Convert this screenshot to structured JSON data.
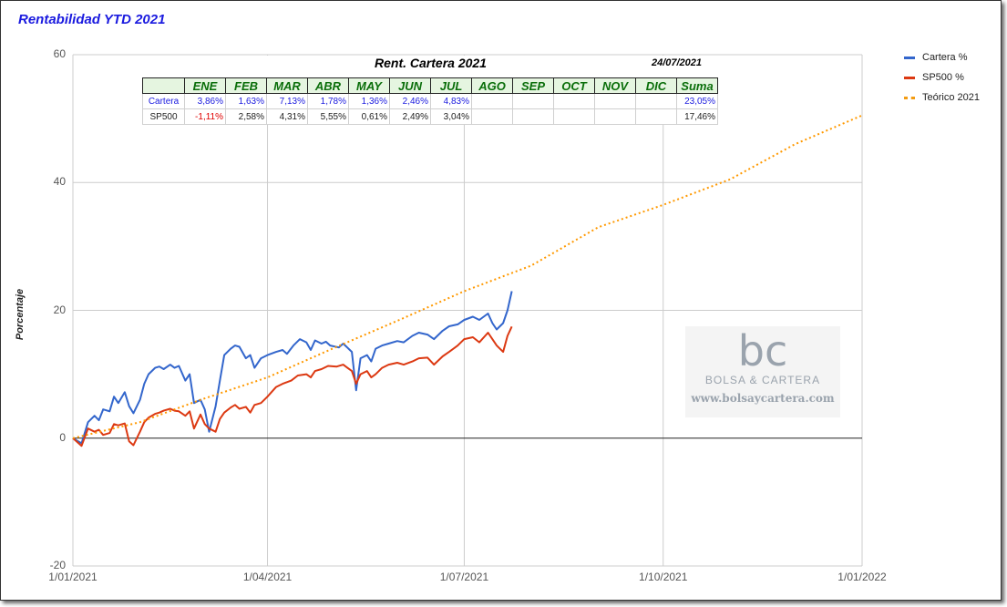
{
  "chart_data": {
    "type": "line",
    "title": "Rentabilidad YTD 2021",
    "ylabel": "Porcentaje",
    "xlabel": "",
    "ylim": [
      -20,
      60
    ],
    "xlim": [
      "2021-01-01",
      "2022-01-01"
    ],
    "yticks": [
      "-20",
      "0",
      "20",
      "40",
      "60"
    ],
    "xticks": [
      "1/01/2021",
      "1/04/2021",
      "1/07/2021",
      "1/10/2021",
      "1/01/2022"
    ],
    "legend_position": "right",
    "grid": true,
    "series": [
      {
        "name": "Cartera %",
        "color": "#3366cc",
        "points": [
          [
            "2021-01-01",
            0
          ],
          [
            "2021-01-05",
            -0.8
          ],
          [
            "2021-01-08",
            2.5
          ],
          [
            "2021-01-11",
            3.5
          ],
          [
            "2021-01-13",
            2.8
          ],
          [
            "2021-01-15",
            4.5
          ],
          [
            "2021-01-18",
            4.2
          ],
          [
            "2021-01-20",
            6.5
          ],
          [
            "2021-01-22",
            5.5
          ],
          [
            "2021-01-25",
            7.2
          ],
          [
            "2021-01-27",
            5
          ],
          [
            "2021-01-29",
            3.9
          ],
          [
            "2021-02-01",
            6
          ],
          [
            "2021-02-03",
            8.5
          ],
          [
            "2021-02-05",
            10
          ],
          [
            "2021-02-08",
            11
          ],
          [
            "2021-02-10",
            11.2
          ],
          [
            "2021-02-12",
            10.8
          ],
          [
            "2021-02-15",
            11.5
          ],
          [
            "2021-02-17",
            11
          ],
          [
            "2021-02-19",
            11.3
          ],
          [
            "2021-02-22",
            9
          ],
          [
            "2021-02-24",
            10
          ],
          [
            "2021-02-26",
            5.5
          ],
          [
            "2021-03-01",
            6
          ],
          [
            "2021-03-03",
            4.5
          ],
          [
            "2021-03-05",
            1
          ],
          [
            "2021-03-08",
            5
          ],
          [
            "2021-03-10",
            9
          ],
          [
            "2021-03-12",
            13
          ],
          [
            "2021-03-15",
            14
          ],
          [
            "2021-03-17",
            14.5
          ],
          [
            "2021-03-19",
            14.3
          ],
          [
            "2021-03-22",
            12.5
          ],
          [
            "2021-03-24",
            13
          ],
          [
            "2021-03-26",
            11
          ],
          [
            "2021-03-29",
            12.5
          ],
          [
            "2021-04-01",
            13
          ],
          [
            "2021-04-05",
            13.5
          ],
          [
            "2021-04-08",
            13.8
          ],
          [
            "2021-04-10",
            13.2
          ],
          [
            "2021-04-13",
            14.5
          ],
          [
            "2021-04-16",
            15.5
          ],
          [
            "2021-04-19",
            15
          ],
          [
            "2021-04-21",
            13.8
          ],
          [
            "2021-04-23",
            15.3
          ],
          [
            "2021-04-26",
            14.8
          ],
          [
            "2021-04-28",
            15.1
          ],
          [
            "2021-04-30",
            14.5
          ],
          [
            "2021-05-04",
            14.2
          ],
          [
            "2021-05-06",
            14.8
          ],
          [
            "2021-05-10",
            13.5
          ],
          [
            "2021-05-12",
            7.5
          ],
          [
            "2021-05-14",
            12.5
          ],
          [
            "2021-05-17",
            13
          ],
          [
            "2021-05-19",
            12
          ],
          [
            "2021-05-21",
            14
          ],
          [
            "2021-05-24",
            14.5
          ],
          [
            "2021-05-27",
            14.8
          ],
          [
            "2021-05-31",
            15.2
          ],
          [
            "2021-06-03",
            15
          ],
          [
            "2021-06-07",
            16
          ],
          [
            "2021-06-10",
            16.5
          ],
          [
            "2021-06-14",
            16.2
          ],
          [
            "2021-06-17",
            15.5
          ],
          [
            "2021-06-21",
            16.8
          ],
          [
            "2021-06-24",
            17.5
          ],
          [
            "2021-06-28",
            17.8
          ],
          [
            "2021-07-01",
            18.5
          ],
          [
            "2021-07-05",
            19
          ],
          [
            "2021-07-08",
            18.5
          ],
          [
            "2021-07-12",
            19.5
          ],
          [
            "2021-07-14",
            18
          ],
          [
            "2021-07-16",
            17
          ],
          [
            "2021-07-19",
            18
          ],
          [
            "2021-07-21",
            20
          ],
          [
            "2021-07-23",
            23
          ]
        ]
      },
      {
        "name": "SP500 %",
        "color": "#dc3912",
        "points": [
          [
            "2021-01-01",
            0
          ],
          [
            "2021-01-05",
            -1.2
          ],
          [
            "2021-01-08",
            1.5
          ],
          [
            "2021-01-11",
            1
          ],
          [
            "2021-01-13",
            1.3
          ],
          [
            "2021-01-15",
            0.5
          ],
          [
            "2021-01-18",
            0.8
          ],
          [
            "2021-01-20",
            2.2
          ],
          [
            "2021-01-22",
            2
          ],
          [
            "2021-01-25",
            2.3
          ],
          [
            "2021-01-27",
            -0.5
          ],
          [
            "2021-01-29",
            -1.1
          ],
          [
            "2021-02-01",
            1
          ],
          [
            "2021-02-03",
            2.5
          ],
          [
            "2021-02-05",
            3.2
          ],
          [
            "2021-02-08",
            3.8
          ],
          [
            "2021-02-10",
            4
          ],
          [
            "2021-02-12",
            4.3
          ],
          [
            "2021-02-15",
            4.6
          ],
          [
            "2021-02-17",
            4.3
          ],
          [
            "2021-02-19",
            4.2
          ],
          [
            "2021-02-22",
            3.5
          ],
          [
            "2021-02-24",
            4.2
          ],
          [
            "2021-02-26",
            1.5
          ],
          [
            "2021-03-01",
            3.7
          ],
          [
            "2021-03-03",
            2.2
          ],
          [
            "2021-03-05",
            1.5
          ],
          [
            "2021-03-08",
            1
          ],
          [
            "2021-03-10",
            3
          ],
          [
            "2021-03-12",
            4
          ],
          [
            "2021-03-15",
            4.8
          ],
          [
            "2021-03-17",
            5.2
          ],
          [
            "2021-03-19",
            4.6
          ],
          [
            "2021-03-22",
            4.9
          ],
          [
            "2021-03-24",
            4
          ],
          [
            "2021-03-26",
            5.2
          ],
          [
            "2021-03-29",
            5.5
          ],
          [
            "2021-04-01",
            6.5
          ],
          [
            "2021-04-05",
            8
          ],
          [
            "2021-04-08",
            8.5
          ],
          [
            "2021-04-12",
            9
          ],
          [
            "2021-04-15",
            9.8
          ],
          [
            "2021-04-19",
            10
          ],
          [
            "2021-04-21",
            9.5
          ],
          [
            "2021-04-23",
            10.5
          ],
          [
            "2021-04-26",
            10.8
          ],
          [
            "2021-04-29",
            11.3
          ],
          [
            "2021-05-03",
            11.2
          ],
          [
            "2021-05-06",
            11.5
          ],
          [
            "2021-05-10",
            10.5
          ],
          [
            "2021-05-12",
            8.5
          ],
          [
            "2021-05-14",
            10
          ],
          [
            "2021-05-17",
            10.5
          ],
          [
            "2021-05-19",
            9.5
          ],
          [
            "2021-05-21",
            10
          ],
          [
            "2021-05-24",
            11
          ],
          [
            "2021-05-27",
            11.5
          ],
          [
            "2021-05-31",
            11.8
          ],
          [
            "2021-06-03",
            11.5
          ],
          [
            "2021-06-07",
            12
          ],
          [
            "2021-06-10",
            12.5
          ],
          [
            "2021-06-14",
            12.6
          ],
          [
            "2021-06-17",
            11.5
          ],
          [
            "2021-06-21",
            12.8
          ],
          [
            "2021-06-24",
            13.5
          ],
          [
            "2021-06-28",
            14.5
          ],
          [
            "2021-07-01",
            15.5
          ],
          [
            "2021-07-05",
            15.8
          ],
          [
            "2021-07-08",
            15
          ],
          [
            "2021-07-12",
            16.5
          ],
          [
            "2021-07-14",
            15.5
          ],
          [
            "2021-07-16",
            14.5
          ],
          [
            "2021-07-19",
            13.5
          ],
          [
            "2021-07-21",
            16
          ],
          [
            "2021-07-23",
            17.46
          ]
        ]
      },
      {
        "name": "Teórico 2021",
        "color": "#ff9900",
        "points": [
          [
            "2021-01-01",
            0
          ],
          [
            "2021-02-01",
            2.5
          ],
          [
            "2021-03-01",
            6
          ],
          [
            "2021-04-01",
            9.5
          ],
          [
            "2021-05-01",
            14
          ],
          [
            "2021-06-01",
            18.5
          ],
          [
            "2021-07-01",
            23
          ],
          [
            "2021-08-01",
            27
          ],
          [
            "2021-09-01",
            33
          ],
          [
            "2021-10-01",
            36.5
          ],
          [
            "2021-11-01",
            40.5
          ],
          [
            "2021-12-01",
            46
          ],
          [
            "2022-01-01",
            50.5
          ]
        ]
      }
    ]
  },
  "table": {
    "title": "Rent. Cartera 2021",
    "date": "24/07/2021",
    "headers": [
      "ENE",
      "FEB",
      "MAR",
      "ABR",
      "MAY",
      "JUN",
      "JUL",
      "AGO",
      "SEP",
      "OCT",
      "NOV",
      "DIC",
      "Suma"
    ],
    "rows": [
      {
        "label": "Cartera",
        "values": [
          "3,86%",
          "1,63%",
          "7,13%",
          "1,78%",
          "1,36%",
          "2,46%",
          "4,83%",
          "",
          "",
          "",
          "",
          "",
          "23,05%"
        ],
        "color": "#1a1adf"
      },
      {
        "label": "SP500",
        "values": [
          "-1,11%",
          "2,58%",
          "4,31%",
          "5,55%",
          "0,61%",
          "2,49%",
          "3,04%",
          "",
          "",
          "",
          "",
          "",
          "17,46%"
        ],
        "color": "#222222"
      }
    ]
  },
  "watermark": {
    "logo": "bc",
    "name": "BOLSA & CARTERA",
    "url": "www.bolsaycartera.com"
  }
}
